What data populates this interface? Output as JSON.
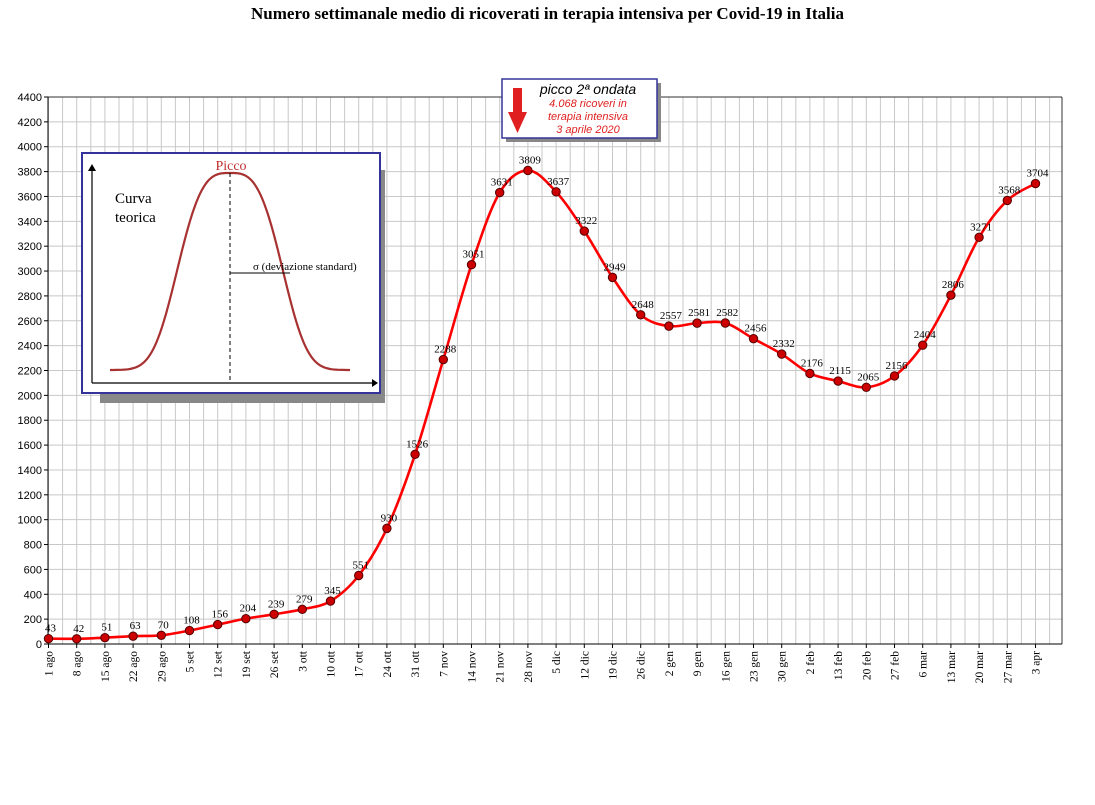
{
  "chart_data": {
    "type": "line",
    "title": "Numero settimanale medio di ricoverati in terapia intensiva per Covid-19 in Italia",
    "xlabel": "",
    "ylabel": "",
    "ylim": [
      0,
      4400
    ],
    "grid": true,
    "categories": [
      "1 ago",
      "8 ago",
      "15 ago",
      "22 ago",
      "29 ago",
      "5 set",
      "12 set",
      "19 set",
      "26 set",
      "3 ott",
      "10 ott",
      "17 ott",
      "24 ott",
      "31 ott",
      "7 nov",
      "14 nov",
      "21 nov",
      "28 nov",
      "5 dic",
      "12 dic",
      "19 dic",
      "26 dic",
      "2 gen",
      "9 gen",
      "16 gen",
      "23 gen",
      "30 gen",
      "2 feb",
      "13 feb",
      "20 feb",
      "27 feb",
      "6 mar",
      "13 mar",
      "20 mar",
      "27 mar",
      "3 apr"
    ],
    "series": [
      {
        "values": [
          43,
          42,
          51,
          63,
          70,
          108,
          156,
          204,
          239,
          279,
          345,
          551,
          930,
          1526,
          2288,
          3051,
          3631,
          3809,
          3637,
          3322,
          2949,
          2648,
          2557,
          2581,
          2582,
          2456,
          2332,
          2176,
          2115,
          2065,
          2156,
          2404,
          2806,
          3271,
          3568,
          3704
        ],
        "labels": [
          "43",
          "42",
          "51",
          "63",
          "70",
          "108",
          "156",
          "204",
          "239",
          "279",
          "345",
          "551",
          "930",
          "1526",
          "2288",
          "3051",
          "3631",
          "3809",
          "3637",
          "3322",
          "2949",
          "2648",
          "2557",
          "2581",
          "2582",
          "2456",
          "2332",
          "2176",
          "2115",
          "2065",
          "2156",
          "2404",
          "2806",
          "3271",
          "3568",
          "3704"
        ],
        "color": "#ff0000",
        "marker_color": "#cc0000"
      }
    ],
    "yticks": [
      0,
      200,
      400,
      600,
      800,
      1000,
      1200,
      1400,
      1600,
      1800,
      2000,
      2200,
      2400,
      2600,
      2800,
      3000,
      3200,
      3400,
      3600,
      3800,
      4000,
      4200,
      4400
    ],
    "annotation": {
      "title": "picco 2ª ondata",
      "lines": [
        "4.068 ricoveri in",
        "terapia intensiva",
        "3 aprile 2020"
      ],
      "arrow_color": "#e02020"
    },
    "inset": {
      "label_left": [
        "Curva",
        "teorica"
      ],
      "peak_label": "Picco",
      "sigma_label": "σ  (deviazione standard)",
      "border_color": "#333399",
      "curve_color": "#a83232"
    }
  }
}
